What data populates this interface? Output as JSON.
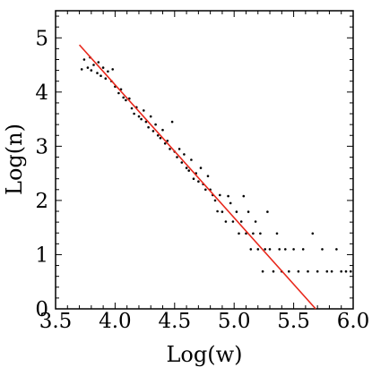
{
  "chart_data": {
    "type": "scatter",
    "title": "",
    "xlabel": "Log(w)",
    "ylabel": "Log(n)",
    "xlim": [
      3.5,
      6.0
    ],
    "ylim": [
      0,
      5.5
    ],
    "x_ticks": [
      "3.5",
      "4.0",
      "4.5",
      "5.0",
      "5.5",
      "6.0"
    ],
    "y_ticks": [
      "0",
      "1",
      "2",
      "3",
      "4",
      "5"
    ],
    "x_tick_values": [
      3.5,
      4.0,
      4.5,
      5.0,
      5.5,
      6.0
    ],
    "y_tick_values": [
      0,
      1,
      2,
      3,
      4,
      5
    ],
    "grid": false,
    "point_color": "#000000",
    "fit_line": {
      "color": "#e8281c",
      "x": [
        3.7,
        5.685
      ],
      "y": [
        4.87,
        0.0
      ]
    },
    "series": [
      {
        "points": [
          [
            3.72,
            4.42
          ],
          [
            3.74,
            4.6
          ],
          [
            3.77,
            4.45
          ],
          [
            3.79,
            4.64
          ],
          [
            3.8,
            4.4
          ],
          [
            3.82,
            4.5
          ],
          [
            3.85,
            4.35
          ],
          [
            3.86,
            4.55
          ],
          [
            3.88,
            4.3
          ],
          [
            3.9,
            4.45
          ],
          [
            3.92,
            4.25
          ],
          [
            3.94,
            4.38
          ],
          [
            3.97,
            4.2
          ],
          [
            3.98,
            4.42
          ],
          [
            4.0,
            4.1
          ],
          [
            4.03,
            3.98
          ],
          [
            4.05,
            4.05
          ],
          [
            4.07,
            3.9
          ],
          [
            4.09,
            3.85
          ],
          [
            4.12,
            3.88
          ],
          [
            4.14,
            3.7
          ],
          [
            4.16,
            3.6
          ],
          [
            4.18,
            3.72
          ],
          [
            4.2,
            3.55
          ],
          [
            4.22,
            3.5
          ],
          [
            4.24,
            3.66
          ],
          [
            4.26,
            3.45
          ],
          [
            4.28,
            3.35
          ],
          [
            4.3,
            3.55
          ],
          [
            4.32,
            3.28
          ],
          [
            4.34,
            3.4
          ],
          [
            4.36,
            3.2
          ],
          [
            4.38,
            3.15
          ],
          [
            4.4,
            3.3
          ],
          [
            4.42,
            3.05
          ],
          [
            4.44,
            3.1
          ],
          [
            4.46,
            2.95
          ],
          [
            4.48,
            3.45
          ],
          [
            4.5,
            2.9
          ],
          [
            4.52,
            2.8
          ],
          [
            4.54,
            2.95
          ],
          [
            4.56,
            2.7
          ],
          [
            4.58,
            2.85
          ],
          [
            4.6,
            2.6
          ],
          [
            4.62,
            2.55
          ],
          [
            4.64,
            2.75
          ],
          [
            4.66,
            2.4
          ],
          [
            4.68,
            2.5
          ],
          [
            4.7,
            2.35
          ],
          [
            4.72,
            2.6
          ],
          [
            4.74,
            2.3
          ],
          [
            4.76,
            2.2
          ],
          [
            4.78,
            2.45
          ],
          [
            4.8,
            2.2
          ],
          [
            4.82,
            2.1
          ],
          [
            4.84,
            2.0
          ],
          [
            4.86,
            1.8
          ],
          [
            4.88,
            2.1
          ],
          [
            4.9,
            1.79
          ],
          [
            4.93,
            1.61
          ],
          [
            4.95,
            2.08
          ],
          [
            4.97,
            1.95
          ],
          [
            4.99,
            1.61
          ],
          [
            5.02,
            1.79
          ],
          [
            5.04,
            1.39
          ],
          [
            5.06,
            1.61
          ],
          [
            5.08,
            2.08
          ],
          [
            5.1,
            1.39
          ],
          [
            5.12,
            1.79
          ],
          [
            5.14,
            1.1
          ],
          [
            5.16,
            1.39
          ],
          [
            5.18,
            1.61
          ],
          [
            5.2,
            1.1
          ],
          [
            5.22,
            1.39
          ],
          [
            5.24,
            0.69
          ],
          [
            5.26,
            1.1
          ],
          [
            5.28,
            1.79
          ],
          [
            5.3,
            1.1
          ],
          [
            5.33,
            0.69
          ],
          [
            5.36,
            1.39
          ],
          [
            5.38,
            1.1
          ],
          [
            5.4,
            0.69
          ],
          [
            5.43,
            1.1
          ],
          [
            5.46,
            0.69
          ],
          [
            5.5,
            1.1
          ],
          [
            5.54,
            0.69
          ],
          [
            5.58,
            1.1
          ],
          [
            5.62,
            0.69
          ],
          [
            5.66,
            1.39
          ],
          [
            5.7,
            0.69
          ],
          [
            5.74,
            1.1
          ],
          [
            5.78,
            0.69
          ],
          [
            5.82,
            0.69
          ],
          [
            5.86,
            1.1
          ],
          [
            5.9,
            0.69
          ],
          [
            5.94,
            0.69
          ],
          [
            5.98,
            0.69
          ]
        ]
      }
    ]
  }
}
